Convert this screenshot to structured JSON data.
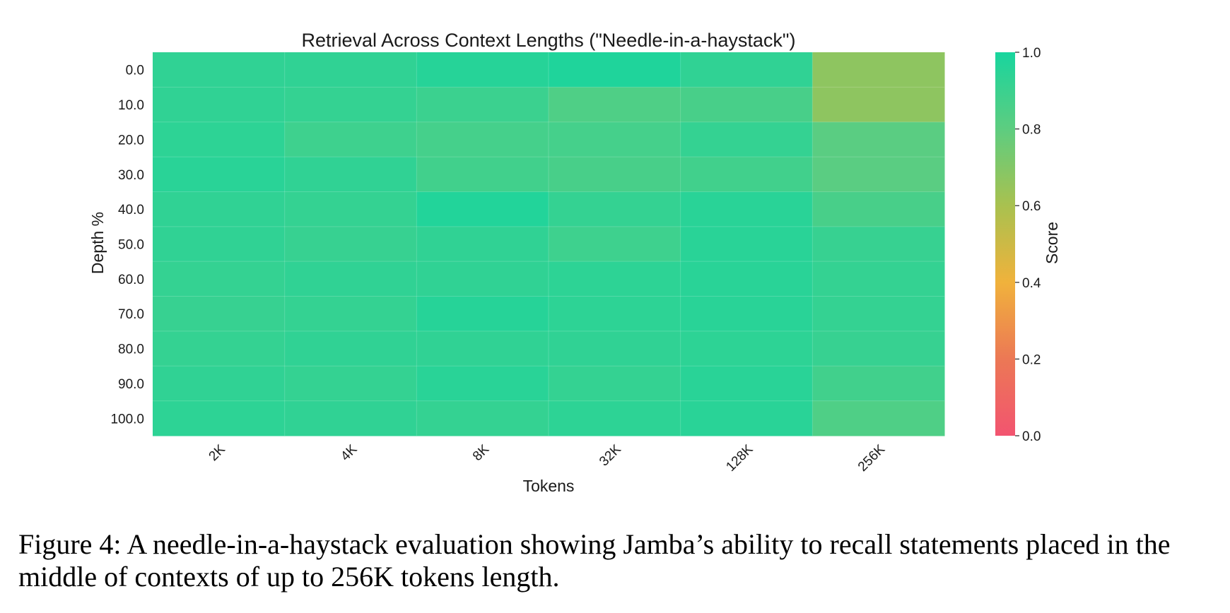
{
  "chart_data": {
    "type": "heatmap",
    "title": "Retrieval Across Context Lengths (\"Needle-in-a-haystack\")",
    "xlabel": "Tokens",
    "ylabel": "Depth %",
    "x": [
      "2K",
      "4K",
      "8K",
      "32K",
      "128K",
      "256K"
    ],
    "y": [
      "0.0",
      "10.0",
      "20.0",
      "30.0",
      "40.0",
      "50.0",
      "60.0",
      "70.0",
      "80.0",
      "90.0",
      "100.0"
    ],
    "values": [
      [
        0.93,
        0.93,
        0.96,
        0.98,
        0.93,
        0.67
      ],
      [
        0.93,
        0.92,
        0.9,
        0.84,
        0.86,
        0.67
      ],
      [
        0.94,
        0.89,
        0.87,
        0.87,
        0.92,
        0.81
      ],
      [
        0.95,
        0.93,
        0.88,
        0.86,
        0.88,
        0.81
      ],
      [
        0.93,
        0.92,
        0.97,
        0.92,
        0.95,
        0.86
      ],
      [
        0.93,
        0.91,
        0.93,
        0.89,
        0.95,
        0.91
      ],
      [
        0.92,
        0.93,
        0.93,
        0.94,
        0.95,
        0.92
      ],
      [
        0.91,
        0.92,
        0.96,
        0.94,
        0.95,
        0.92
      ],
      [
        0.92,
        0.93,
        0.93,
        0.93,
        0.94,
        0.91
      ],
      [
        0.93,
        0.92,
        0.95,
        0.92,
        0.95,
        0.88
      ],
      [
        0.94,
        0.93,
        0.92,
        0.94,
        0.95,
        0.84
      ]
    ],
    "colorbar": {
      "label": "Score",
      "range": [
        0,
        1
      ],
      "ticks": [
        "0.0",
        "0.2",
        "0.4",
        "0.6",
        "0.8",
        "1.0"
      ],
      "colors": [
        "#f25470",
        "#ec7855",
        "#f0b23c",
        "#a9c14f",
        "#5dcd80",
        "#18d59e"
      ]
    }
  },
  "caption": "Figure 4: A needle-in-a-haystack evaluation showing Jamba’s ability to recall statements placed in the middle of contexts of up to 256K tokens length."
}
